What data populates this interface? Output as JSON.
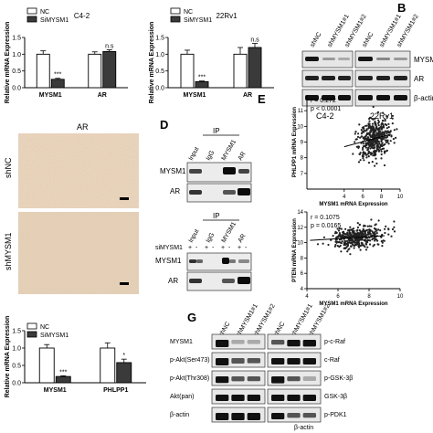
{
  "panel_letters": {
    "B": "B",
    "D": "D",
    "E": "E",
    "G": "G"
  },
  "chart_data": [
    {
      "type": "bar",
      "title": "C4-2",
      "ylabel": "Relative mRNA Expression",
      "ylim": [
        0,
        1.5
      ],
      "yticks": [
        "0.0",
        "0.5",
        "1.0",
        "1.5"
      ],
      "categories": [
        "MYSM1",
        "AR"
      ],
      "series": [
        {
          "name": "NC",
          "color": "#ffffff",
          "values": [
            1.0,
            1.0
          ],
          "errors": [
            0.1,
            0.07
          ]
        },
        {
          "name": "SiMYSM1",
          "color": "#3a3a3a",
          "values": [
            0.25,
            1.08
          ],
          "errors": [
            0.03,
            0.05
          ]
        }
      ],
      "annotations": [
        "***",
        "n.s"
      ]
    },
    {
      "type": "bar",
      "title": "22Rv1",
      "ylabel": "Relative mRNA Expression",
      "ylim": [
        0,
        1.5
      ],
      "yticks": [
        "0.0",
        "0.5",
        "1.0",
        "1.5"
      ],
      "categories": [
        "MYSM1",
        "AR"
      ],
      "series": [
        {
          "name": "NC",
          "color": "#ffffff",
          "values": [
            1.0,
            1.0
          ],
          "errors": [
            0.12,
            0.2
          ]
        },
        {
          "name": "SiMYSM1",
          "color": "#3a3a3a",
          "values": [
            0.18,
            1.2
          ],
          "errors": [
            0.02,
            0.12
          ]
        }
      ],
      "annotations": [
        "***",
        "n.s"
      ]
    },
    {
      "type": "bar",
      "title": "",
      "ylabel": "Relative mRNA Expression",
      "ylim": [
        0,
        1.5
      ],
      "yticks": [
        "0.0",
        "0.5",
        "1.0",
        "1.5"
      ],
      "categories": [
        "MYSM1",
        "PHLPP1"
      ],
      "series": [
        {
          "name": "NC",
          "color": "#ffffff",
          "values": [
            1.0,
            1.0
          ],
          "errors": [
            0.1,
            0.15
          ]
        },
        {
          "name": "SiMYSM1",
          "color": "#3a3a3a",
          "values": [
            0.18,
            0.58
          ],
          "errors": [
            0.02,
            0.1
          ]
        }
      ],
      "annotations": [
        "***",
        "*"
      ]
    },
    {
      "type": "scatter",
      "title": "",
      "xlabel": "MYSM1 mRNA Expression",
      "ylabel": "PHLPP1 mRNA Expression",
      "xlim": [
        0,
        10
      ],
      "ylim": [
        6,
        12
      ],
      "xticks": [
        "4",
        "6",
        "8",
        "10"
      ],
      "yticks": [
        "7",
        "8",
        "9",
        "10",
        "11"
      ],
      "stats": [
        "r = 0.272",
        "p < 0.0001"
      ],
      "fit": {
        "x": [
          4,
          9
        ],
        "y": [
          8.7,
          9.5
        ]
      },
      "cloud": {
        "x_mean": 7.3,
        "x_sd": 0.9,
        "y_mean": 9.2,
        "y_sd": 0.7,
        "n": 420
      }
    },
    {
      "type": "scatter",
      "title": "",
      "xlabel": "MYSM1 mRNA Expression",
      "ylabel": "PTEN mRNA Expression",
      "xlim": [
        4,
        10
      ],
      "ylim": [
        4,
        14
      ],
      "xticks": [
        "4",
        "6",
        "8",
        "10"
      ],
      "yticks": [
        "4",
        "6",
        "8",
        "10",
        "12",
        "14"
      ],
      "stats": [
        "r = 0.1075",
        "p = 0.0165"
      ],
      "fit": {
        "x": [
          4.2,
          9
        ],
        "y": [
          10.3,
          10.9
        ]
      },
      "cloud": {
        "x_mean": 7.3,
        "x_sd": 0.8,
        "y_mean": 10.6,
        "y_sd": 0.7,
        "n": 420
      }
    }
  ],
  "panel_b": {
    "lanes": [
      "shNC",
      "shMYSM1#1",
      "shMYSM1#2",
      "shNC",
      "shMYSM1#1",
      "shMYSM1#2"
    ],
    "rows": [
      "MYSM1",
      "AR",
      "β-actin"
    ],
    "cells": [
      "C4-2",
      "22Rv1"
    ]
  },
  "panel_c": {
    "title": "AR",
    "rows": [
      "shNC",
      "shMYSM1"
    ]
  },
  "panel_d": {
    "top_header": "IP",
    "top_lanes": [
      "Input",
      "IgG",
      "MYSM1",
      "AR"
    ],
    "top_rows": [
      "MYSM1",
      "AR"
    ],
    "bottom_header": "IP",
    "bottom_lanes": [
      "Input",
      "IgG",
      "MYSM1",
      "AR"
    ],
    "sirna_label": "siMYSM1",
    "sirna_signs": [
      "+",
      "-",
      "+",
      "-",
      "+",
      "-",
      "+",
      "-"
    ],
    "bottom_rows": [
      "MYSM1",
      "AR"
    ]
  },
  "panel_g": {
    "left_lanes": [
      "shNC",
      "shMYSM1#1",
      "shMYSM1#2"
    ],
    "right_lanes": [
      "shNC",
      "shMYSM1#1",
      "shMYSM1#2"
    ],
    "left_rows": [
      "MYSM1",
      "p-Akt(Ser473)",
      "p-Akt(Thr308)",
      "Akt(pan)",
      "β-actin"
    ],
    "right_rows": [
      "p-c-Raf",
      "c-Raf",
      "p-GSK-3β",
      "GSK-3β",
      "p-PDK1",
      "β-actin"
    ]
  }
}
